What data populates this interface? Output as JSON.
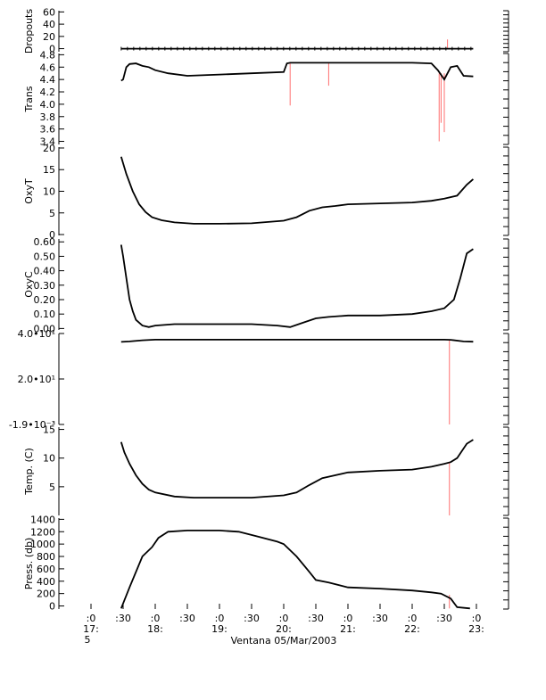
{
  "chart_data": {
    "type": "line",
    "title": "",
    "xlabel": "Ventana 05/Mar/2003",
    "x_ticks": [
      {
        "t": 17.0,
        "top": ":0",
        "bottom": "17:",
        "extra": "5"
      },
      {
        "t": 17.5,
        "top": ":30",
        "bottom": "",
        "extra": ""
      },
      {
        "t": 18.0,
        "top": ":0",
        "bottom": "18:",
        "extra": ""
      },
      {
        "t": 18.5,
        "top": ":30",
        "bottom": "",
        "extra": ""
      },
      {
        "t": 19.0,
        "top": ":0",
        "bottom": "19:",
        "extra": ""
      },
      {
        "t": 19.5,
        "top": ":30",
        "bottom": "",
        "extra": ""
      },
      {
        "t": 20.0,
        "top": ":0",
        "bottom": "20:",
        "extra": ""
      },
      {
        "t": 20.5,
        "top": ":30",
        "bottom": "",
        "extra": ""
      },
      {
        "t": 21.0,
        "top": ":0",
        "bottom": "21:",
        "extra": ""
      },
      {
        "t": 21.5,
        "top": ":30",
        "bottom": "",
        "extra": ""
      },
      {
        "t": 22.0,
        "top": ":0",
        "bottom": "22:",
        "extra": ""
      },
      {
        "t": 22.5,
        "top": ":30",
        "bottom": "",
        "extra": ""
      },
      {
        "t": 23.0,
        "top": ":0",
        "bottom": "23:",
        "extra": ""
      }
    ],
    "xlim": [
      16.5,
      23.5
    ],
    "panels": [
      {
        "ylabel": "Dropouts",
        "ylim": [
          -5,
          62
        ],
        "yticks": [
          {
            "v": 60,
            "label": "60"
          },
          {
            "v": 40,
            "label": "40"
          },
          {
            "v": 20,
            "label": "20"
          },
          {
            "v": 0,
            "label": "0"
          }
        ],
        "markers": true,
        "series": [
          {
            "x": [
              17.47,
              17.8,
              18.2,
              18.6,
              19.0,
              19.4,
              19.8,
              20.2,
              20.6,
              21.0,
              21.4,
              21.8,
              22.2,
              22.6,
              22.95
            ],
            "y": [
              0,
              0,
              0,
              0,
              0,
              0,
              0,
              0,
              0,
              0,
              0,
              0,
              0,
              0,
              0
            ]
          }
        ],
        "spikes": [
          {
            "x": 22.55,
            "from": 0,
            "to": 15
          }
        ]
      },
      {
        "ylabel": "Trans",
        "ylim": [
          3.35,
          4.82
        ],
        "yticks": [
          {
            "v": 4.8,
            "label": "4.8"
          },
          {
            "v": 4.6,
            "label": "4.6"
          },
          {
            "v": 4.4,
            "label": "4.4"
          },
          {
            "v": 4.2,
            "label": "4.2"
          },
          {
            "v": 4.0,
            "label": "4.0"
          },
          {
            "v": 3.8,
            "label": "3.8"
          },
          {
            "v": 3.6,
            "label": "3.6"
          },
          {
            "v": 3.4,
            "label": "3.4"
          }
        ],
        "series": [
          {
            "x": [
              17.47,
              17.5,
              17.55,
              17.6,
              17.7,
              17.8,
              17.9,
              18.0,
              18.2,
              18.5,
              19.0,
              19.5,
              20.0,
              20.05,
              20.1,
              20.5,
              21.0,
              21.5,
              22.0,
              22.3,
              22.4,
              22.5,
              22.6,
              22.7,
              22.8,
              22.95
            ],
            "y": [
              4.38,
              4.4,
              4.6,
              4.65,
              4.66,
              4.62,
              4.6,
              4.55,
              4.5,
              4.46,
              4.48,
              4.5,
              4.52,
              4.66,
              4.67,
              4.67,
              4.67,
              4.67,
              4.67,
              4.66,
              4.55,
              4.4,
              4.6,
              4.62,
              4.46,
              4.45
            ]
          }
        ],
        "spikes": [
          {
            "x": 20.1,
            "from": 4.66,
            "to": 3.98
          },
          {
            "x": 20.7,
            "from": 4.66,
            "to": 4.3
          },
          {
            "x": 22.42,
            "from": 4.5,
            "to": 3.4
          },
          {
            "x": 22.45,
            "from": 4.5,
            "to": 3.7
          },
          {
            "x": 22.5,
            "from": 4.5,
            "to": 3.55
          }
        ]
      },
      {
        "ylabel": "OxyT",
        "ylim": [
          -0.2,
          20.2
        ],
        "yticks": [
          {
            "v": 20,
            "label": "20"
          },
          {
            "v": 15,
            "label": "15"
          },
          {
            "v": 10,
            "label": "10"
          },
          {
            "v": 5,
            "label": "5"
          },
          {
            "v": 0,
            "label": "0"
          }
        ],
        "series": [
          {
            "x": [
              17.47,
              17.55,
              17.65,
              17.75,
              17.85,
              17.95,
              18.1,
              18.3,
              18.6,
              19.0,
              19.5,
              20.0,
              20.2,
              20.4,
              20.6,
              20.8,
              21.0,
              21.5,
              22.0,
              22.3,
              22.5,
              22.7,
              22.85,
              22.95
            ],
            "y": [
              18,
              14,
              10,
              7,
              5.2,
              4,
              3.3,
              2.8,
              2.5,
              2.5,
              2.6,
              3.2,
              4,
              5.5,
              6.3,
              6.6,
              7,
              7.2,
              7.4,
              7.8,
              8.3,
              9,
              11.5,
              12.8
            ]
          }
        ],
        "spikes": []
      },
      {
        "ylabel": "OxyC",
        "ylim": [
          -0.01,
          0.62
        ],
        "yticks": [
          {
            "v": 0.6,
            "label": "0.60"
          },
          {
            "v": 0.5,
            "label": "0.50"
          },
          {
            "v": 0.4,
            "label": "0.40"
          },
          {
            "v": 0.3,
            "label": "0.30"
          },
          {
            "v": 0.2,
            "label": "0.20"
          },
          {
            "v": 0.1,
            "label": "0.10"
          },
          {
            "v": 0.0,
            "label": "0.00"
          }
        ],
        "series": [
          {
            "x": [
              17.47,
              17.5,
              17.55,
              17.6,
              17.65,
              17.7,
              17.8,
              17.9,
              18.0,
              18.3,
              18.6,
              19.0,
              19.5,
              19.9,
              20.1,
              20.3,
              20.5,
              20.7,
              21.0,
              21.5,
              22.0,
              22.3,
              22.5,
              22.65,
              22.75,
              22.85,
              22.95
            ],
            "y": [
              0.58,
              0.5,
              0.35,
              0.2,
              0.12,
              0.06,
              0.02,
              0.01,
              0.02,
              0.03,
              0.03,
              0.03,
              0.03,
              0.02,
              0.01,
              0.04,
              0.07,
              0.08,
              0.09,
              0.09,
              0.1,
              0.12,
              0.14,
              0.2,
              0.35,
              0.52,
              0.55
            ]
          }
        ],
        "spikes": []
      },
      {
        "ylabel": "",
        "ylim": [
          -0.0019,
          40
        ],
        "yticks": [
          {
            "v": 40,
            "label": "4.0•10¹"
          },
          {
            "v": 20,
            "label": "2.0•10¹"
          },
          {
            "v": -0.0019,
            "label": "-1.9•10⁻³"
          }
        ],
        "series": [
          {
            "x": [
              17.47,
              17.6,
              17.8,
              18.0,
              18.5,
              19.0,
              19.5,
              20.0,
              20.5,
              21.0,
              21.5,
              22.0,
              22.5,
              22.6,
              22.8,
              22.95
            ],
            "y": [
              36.3,
              36.5,
              37.0,
              37.3,
              37.3,
              37.3,
              37.3,
              37.3,
              37.3,
              37.3,
              37.3,
              37.3,
              37.3,
              37.2,
              36.5,
              36.4
            ]
          }
        ],
        "spikes": [
          {
            "x": 22.58,
            "from": 37.3,
            "to": 0
          }
        ]
      },
      {
        "ylabel": "Temp. (C)",
        "ylim": [
          0,
          15.4
        ],
        "yticks": [
          {
            "v": 15,
            "label": "15"
          },
          {
            "v": 10,
            "label": "10"
          },
          {
            "v": 5,
            "label": "5"
          }
        ],
        "series": [
          {
            "x": [
              17.47,
              17.52,
              17.6,
              17.7,
              17.8,
              17.9,
              18.0,
              18.3,
              18.6,
              19.0,
              19.5,
              20.0,
              20.2,
              20.4,
              20.6,
              20.8,
              21.0,
              21.5,
              22.0,
              22.3,
              22.5,
              22.6,
              22.7,
              22.85,
              22.95
            ],
            "y": [
              12.8,
              11,
              9,
              7,
              5.5,
              4.5,
              4,
              3.3,
              3.1,
              3.1,
              3.1,
              3.5,
              4,
              5.3,
              6.5,
              7,
              7.5,
              7.8,
              8,
              8.5,
              9,
              9.3,
              10,
              12.5,
              13.2
            ]
          }
        ],
        "spikes": [
          {
            "x": 22.58,
            "from": 9.2,
            "to": 0
          }
        ]
      },
      {
        "ylabel": "Press. (db)",
        "ylim": [
          -50,
          1420
        ],
        "yticks": [
          {
            "v": 1400,
            "label": "1400"
          },
          {
            "v": 1200,
            "label": "1200"
          },
          {
            "v": 1000,
            "label": "1000"
          },
          {
            "v": 800,
            "label": "800"
          },
          {
            "v": 600,
            "label": "600"
          },
          {
            "v": 400,
            "label": "400"
          },
          {
            "v": 200,
            "label": "200"
          },
          {
            "v": 0,
            "label": "0"
          }
        ],
        "series": [
          {
            "x": [
              17.47,
              17.6,
              17.8,
              17.95,
              18.05,
              18.2,
              18.5,
              19.0,
              19.3,
              19.6,
              19.9,
              20.0,
              20.2,
              20.4,
              20.5,
              20.7,
              21.0,
              21.5,
              22.0,
              22.3,
              22.45,
              22.6,
              22.7,
              22.9
            ],
            "y": [
              -40,
              300,
              800,
              950,
              1100,
              1200,
              1220,
              1220,
              1200,
              1120,
              1040,
              1000,
              800,
              550,
              420,
              380,
              300,
              280,
              250,
              220,
              200,
              120,
              -20,
              -40
            ]
          }
        ],
        "spikes": [
          {
            "x": 22.58,
            "from": 180,
            "to": -40
          }
        ]
      }
    ]
  },
  "colors": {
    "line": "#000000",
    "spike": "#ff6f6f"
  }
}
